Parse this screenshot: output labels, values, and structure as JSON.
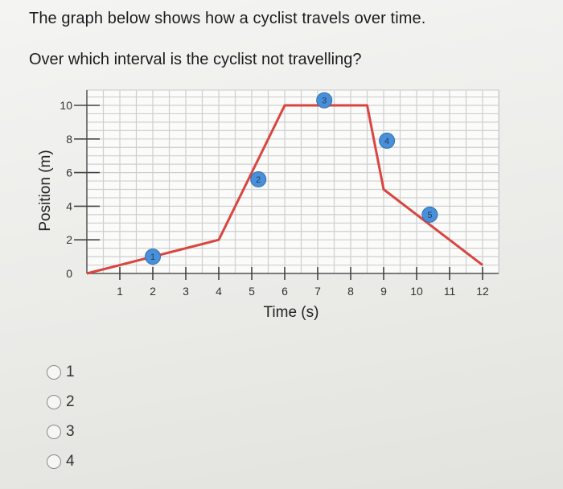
{
  "question": {
    "title": "The graph below shows how a cyclist travels over time.",
    "prompt": "Over which interval is the cyclist not travelling?"
  },
  "chart_data": {
    "type": "line",
    "title": "",
    "xlabel": "Time (s)",
    "ylabel": "Position (m)",
    "xlim": [
      0,
      12
    ],
    "ylim": [
      0,
      10
    ],
    "x_ticks": [
      1,
      2,
      3,
      4,
      5,
      6,
      7,
      8,
      9,
      10,
      11,
      12
    ],
    "y_ticks": [
      0,
      2,
      4,
      6,
      8,
      10
    ],
    "grid": true,
    "line_color": "#d9453f",
    "marker_color": "#4a90d9",
    "series": [
      {
        "x": [
          0,
          4,
          6,
          8.5,
          9,
          12
        ],
        "y": [
          0,
          2,
          10,
          10,
          5,
          0.5
        ]
      }
    ],
    "interval_markers": [
      {
        "label": "1",
        "x": 2,
        "y": 1
      },
      {
        "label": "2",
        "x": 5.2,
        "y": 5.6
      },
      {
        "label": "3",
        "x": 7.2,
        "y": 10.3
      },
      {
        "label": "4",
        "x": 9.1,
        "y": 7.9
      },
      {
        "label": "5",
        "x": 10.4,
        "y": 3.5
      }
    ]
  },
  "options": [
    {
      "label": "1"
    },
    {
      "label": "2"
    },
    {
      "label": "3"
    },
    {
      "label": "4"
    }
  ]
}
